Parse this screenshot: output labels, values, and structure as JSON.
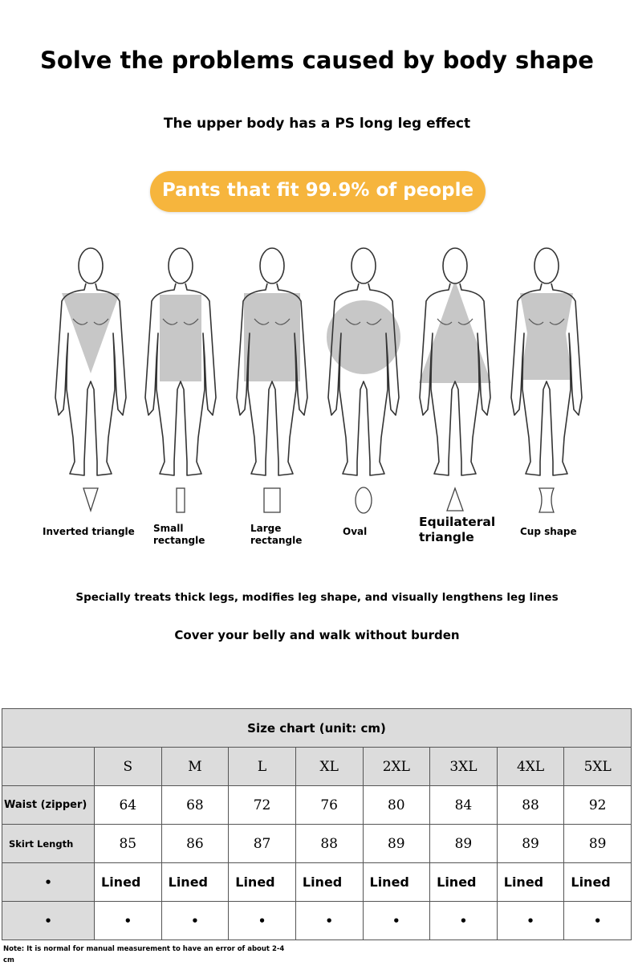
{
  "title": "Solve the problems caused by body shape",
  "subtitle": "The upper body has a PS long leg effect",
  "badge": "Pants that fit 99.9% of people",
  "colors": {
    "badge": "#f6b53d",
    "shape_fill": "#c4c4c4",
    "table_header": "#dcdcdc"
  },
  "body_shapes": [
    {
      "label": "Inverted triangle",
      "shape": "inverted-triangle"
    },
    {
      "label": "Small\nrectangle",
      "shape": "small-rectangle"
    },
    {
      "label": "Large\nrectangle",
      "shape": "large-rectangle"
    },
    {
      "label": "Oval",
      "shape": "oval"
    },
    {
      "label": "Equilateral\ntriangle",
      "shape": "triangle"
    },
    {
      "label": "Cup shape",
      "shape": "cup"
    }
  ],
  "line1": "Specially treats thick legs, modifies leg shape, and visually lengthens leg lines",
  "line2": "Cover your belly and walk without burden",
  "size_chart": {
    "title": "Size chart (unit: cm)",
    "sizes": [
      "S",
      "M",
      "L",
      "XL",
      "2XL",
      "3XL",
      "4XL",
      "5XL"
    ],
    "rows": [
      {
        "label": "Waist (zipper)",
        "values": [
          "64",
          "68",
          "72",
          "76",
          "80",
          "84",
          "88",
          "92"
        ]
      },
      {
        "label": "Skirt Length",
        "values": [
          "85",
          "86",
          "87",
          "88",
          "89",
          "89",
          "89",
          "89"
        ]
      },
      {
        "label": "•",
        "values": [
          "Lined",
          "Lined",
          "Lined",
          "Lined",
          "Lined",
          "Lined",
          "Lined",
          "Lined"
        ]
      },
      {
        "label": "•",
        "values": [
          "•",
          "•",
          "•",
          "•",
          "•",
          "•",
          "•",
          "•"
        ]
      }
    ],
    "note": "Note: It is normal for manual measurement to have an error of about 2-4 cm"
  }
}
